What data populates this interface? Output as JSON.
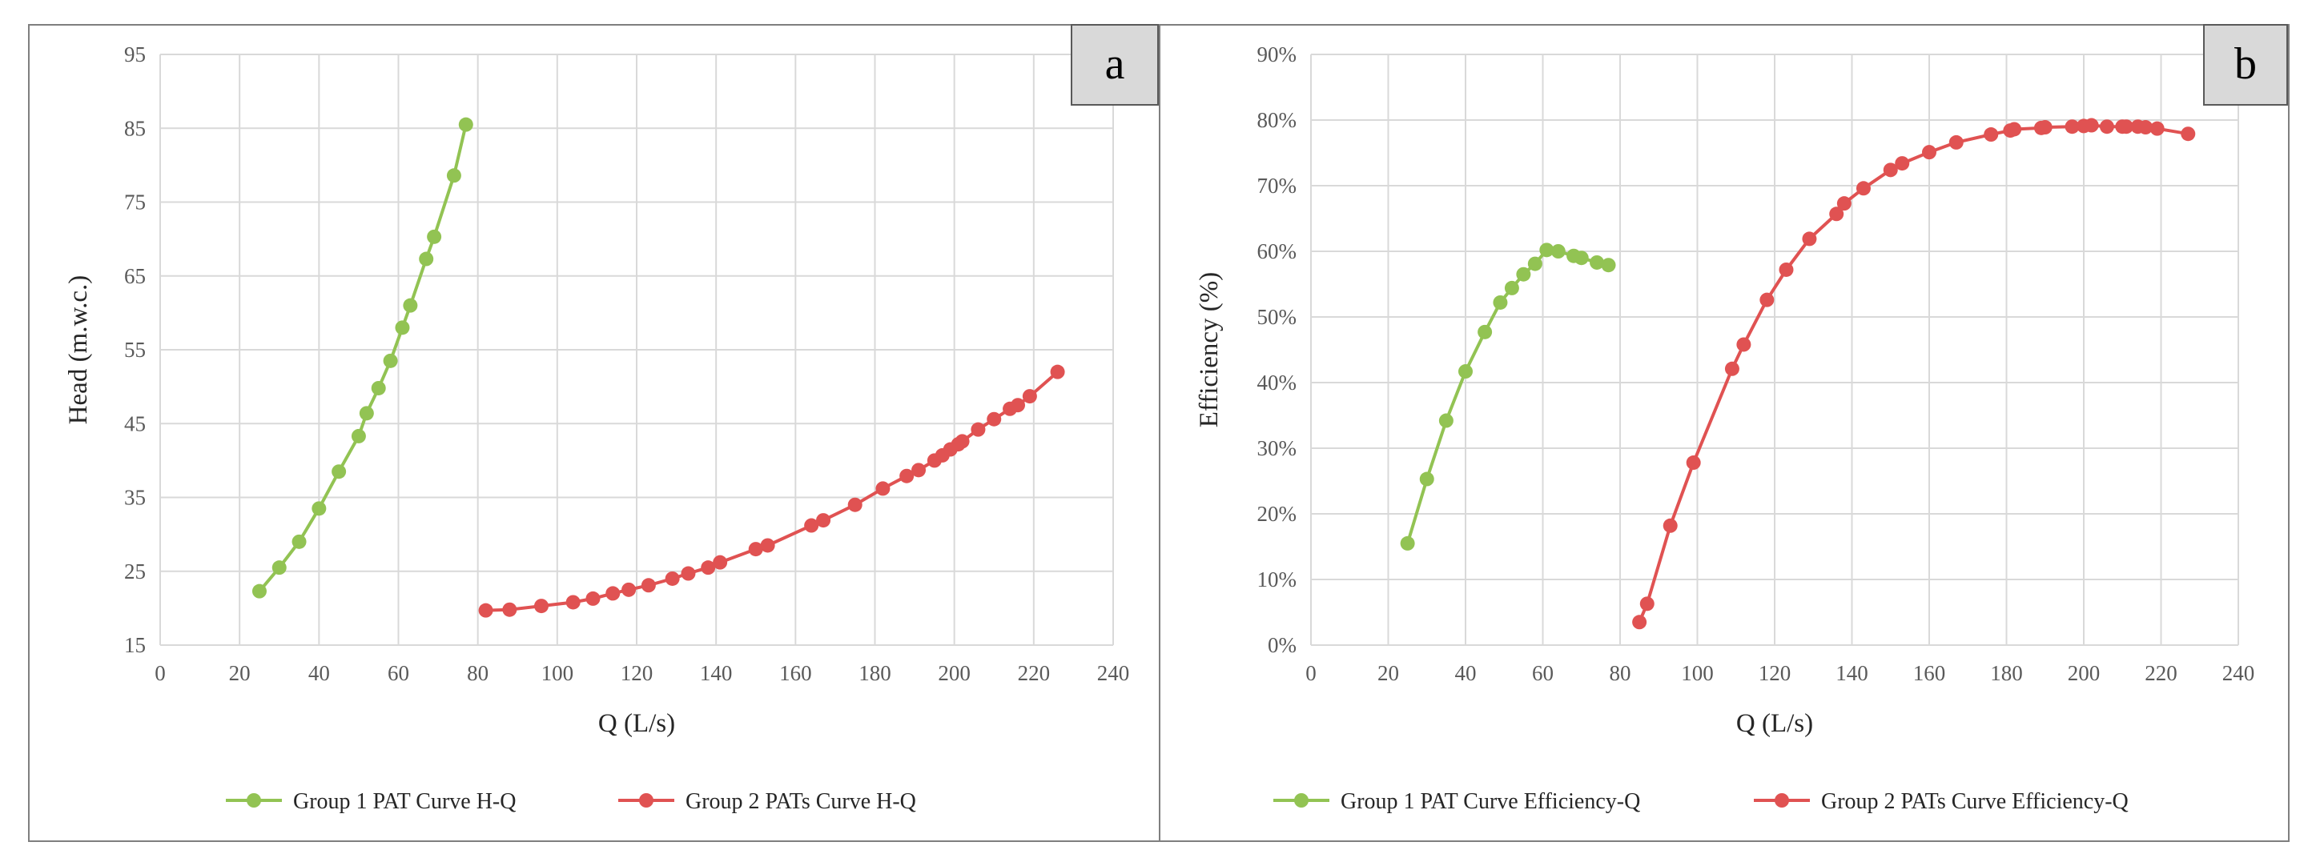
{
  "chart_data": [
    {
      "type": "line",
      "panel_label": "a",
      "xlabel": "Q (L/s)",
      "ylabel": "Head (m.w.c.)",
      "xlim": [
        0,
        240
      ],
      "ylim": [
        15,
        95
      ],
      "x_ticks": [
        "0",
        "20",
        "40",
        "60",
        "80",
        "100",
        "120",
        "140",
        "160",
        "180",
        "200",
        "220",
        "240"
      ],
      "y_ticks": [
        "15",
        "25",
        "35",
        "45",
        "55",
        "65",
        "75",
        "85",
        "95"
      ],
      "grid": true,
      "legend_position": "bottom",
      "series": [
        {
          "name": "Group 1 PAT Curve H-Q",
          "color": "#92c353",
          "x": [
            25,
            30,
            35,
            40,
            45,
            50,
            52,
            55,
            58,
            61,
            63,
            67,
            69,
            74,
            77
          ],
          "y": [
            22.3,
            25.5,
            29.0,
            33.5,
            38.5,
            43.3,
            46.4,
            49.8,
            53.5,
            58.0,
            61.0,
            67.3,
            70.3,
            78.6,
            85.5
          ]
        },
        {
          "name": "Group 2 PATs Curve H-Q",
          "color": "#e05252",
          "x": [
            82,
            88,
            96,
            104,
            109,
            114,
            118,
            123,
            129,
            133,
            138,
            141,
            150,
            153,
            164,
            167,
            175,
            182,
            188,
            191,
            195,
            197,
            199,
            201,
            202,
            206,
            210,
            214,
            216,
            219,
            226
          ],
          "y": [
            19.7,
            19.8,
            20.3,
            20.8,
            21.3,
            22.0,
            22.5,
            23.1,
            24.0,
            24.7,
            25.5,
            26.2,
            28.0,
            28.5,
            31.2,
            31.9,
            34.0,
            36.2,
            37.9,
            38.7,
            40.0,
            40.7,
            41.5,
            42.2,
            42.6,
            44.2,
            45.6,
            47.0,
            47.5,
            48.7,
            52.0
          ]
        }
      ]
    },
    {
      "type": "line",
      "panel_label": "b",
      "xlabel": "Q (L/s)",
      "ylabel": "Efficiency (%)",
      "xlim": [
        0,
        240
      ],
      "ylim": [
        0,
        90
      ],
      "x_ticks": [
        "0",
        "20",
        "40",
        "60",
        "80",
        "100",
        "120",
        "140",
        "160",
        "180",
        "200",
        "220",
        "240"
      ],
      "y_ticks": [
        "0%",
        "10%",
        "20%",
        "30%",
        "40%",
        "50%",
        "60%",
        "70%",
        "80%",
        "90%"
      ],
      "grid": true,
      "legend_position": "bottom",
      "series": [
        {
          "name": "Group 1 PAT Curve Efficiency-Q",
          "color": "#92c353",
          "x": [
            25,
            30,
            35,
            40,
            45,
            49,
            52,
            55,
            58,
            61,
            64,
            68,
            70,
            74,
            77
          ],
          "y": [
            15.5,
            25.3,
            34.2,
            41.7,
            47.7,
            52.2,
            54.4,
            56.5,
            58.1,
            60.2,
            60.0,
            59.3,
            59.0,
            58.3,
            57.9
          ]
        },
        {
          "name": "Group 2 PATs Curve Efficiency-Q",
          "color": "#e05252",
          "x": [
            85,
            87,
            93,
            99,
            109,
            112,
            118,
            123,
            129,
            136,
            138,
            143,
            150,
            153,
            160,
            167,
            176,
            181,
            182,
            189,
            190,
            197,
            200,
            202,
            206,
            210,
            211,
            214,
            216,
            219,
            227
          ],
          "y": [
            3.5,
            6.3,
            18.2,
            27.8,
            42.1,
            45.8,
            52.6,
            57.2,
            61.9,
            65.7,
            67.3,
            69.6,
            72.4,
            73.4,
            75.1,
            76.6,
            77.8,
            78.4,
            78.6,
            78.8,
            78.9,
            79.0,
            79.1,
            79.2,
            79.0,
            79.0,
            79.0,
            79.0,
            78.9,
            78.7,
            77.9
          ]
        }
      ]
    }
  ]
}
